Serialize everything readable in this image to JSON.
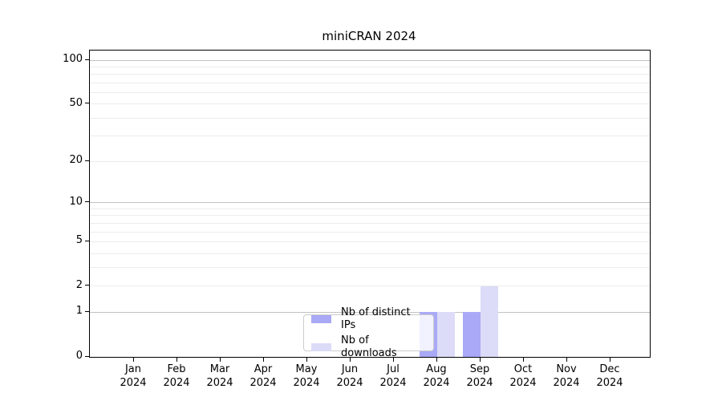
{
  "chart_data": {
    "type": "bar",
    "title": "miniCRAN 2024",
    "categories": [
      "Jan",
      "Feb",
      "Mar",
      "Apr",
      "May",
      "Jun",
      "Jul",
      "Aug",
      "Sep",
      "Oct",
      "Nov",
      "Dec"
    ],
    "year_label": "2024",
    "series": [
      {
        "name": "Nb of distinct IPs",
        "color": "#a9a9f7",
        "values": [
          0,
          0,
          0,
          0,
          0,
          0,
          0,
          1,
          1,
          0,
          0,
          0
        ]
      },
      {
        "name": "Nb of downloads",
        "color": "#dcdcf8",
        "values": [
          0,
          0,
          0,
          0,
          0,
          0,
          0,
          1,
          2,
          0,
          0,
          0
        ]
      }
    ],
    "yscale": "log1p",
    "ylim": [
      0,
      115
    ],
    "ytick_labels": [
      0,
      1,
      2,
      5,
      10,
      20,
      50,
      100
    ],
    "minor_grid_values": [
      2,
      3,
      4,
      5,
      6,
      7,
      8,
      9,
      20,
      30,
      40,
      50,
      60,
      70,
      80,
      90
    ],
    "major_grid_values": [
      1,
      10,
      100
    ],
    "grid": "horizontal-only",
    "legend_position": "inside-bottom-center"
  },
  "colors": {
    "ips_bar": "#a9a9f7",
    "downloads_bar": "#dcdcf8",
    "grid_minor": "#ececec",
    "grid_major": "#c2c2c2",
    "axis": "#000000",
    "legend_border": "#cccccc",
    "background": "#ffffff"
  }
}
